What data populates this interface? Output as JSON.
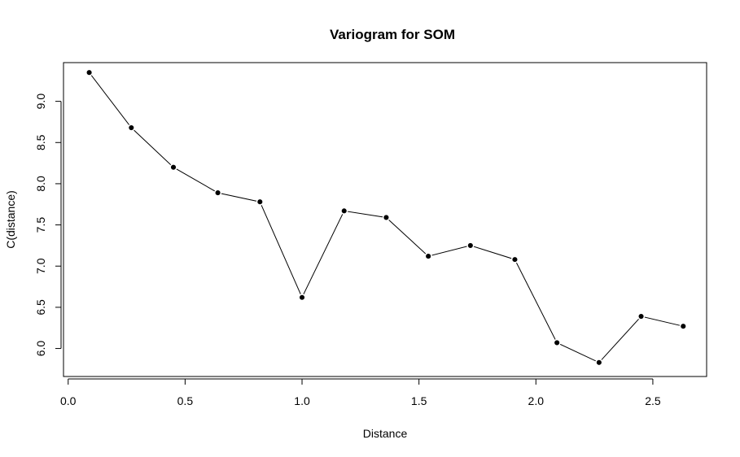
{
  "chart_data": {
    "type": "line",
    "title": "Variogram for SOM",
    "xlabel": "Distance",
    "ylabel": "C(distance)",
    "xlim": [
      -0.02,
      2.73
    ],
    "ylim": [
      5.66,
      9.47
    ],
    "x_ticks": [
      0.0,
      0.5,
      1.0,
      1.5,
      2.0,
      2.5
    ],
    "x_tick_labels": [
      "0.0",
      "0.5",
      "1.0",
      "1.5",
      "2.0",
      "2.5"
    ],
    "y_ticks": [
      6.0,
      6.5,
      7.0,
      7.5,
      8.0,
      8.5,
      9.0
    ],
    "y_tick_labels": [
      "6.0",
      "6.5",
      "7.0",
      "7.5",
      "8.0",
      "8.5",
      "9.0"
    ],
    "grid": false,
    "series": [
      {
        "x": [
          0.09,
          0.27,
          0.45,
          0.64,
          0.82,
          1.0,
          1.18,
          1.36,
          1.54,
          1.72,
          1.91,
          2.09,
          2.27,
          2.45,
          2.63
        ],
        "y": [
          9.35,
          8.68,
          8.2,
          7.89,
          7.78,
          6.62,
          7.67,
          7.59,
          7.12,
          7.25,
          7.08,
          6.07,
          5.83,
          6.39,
          6.27
        ]
      }
    ]
  }
}
